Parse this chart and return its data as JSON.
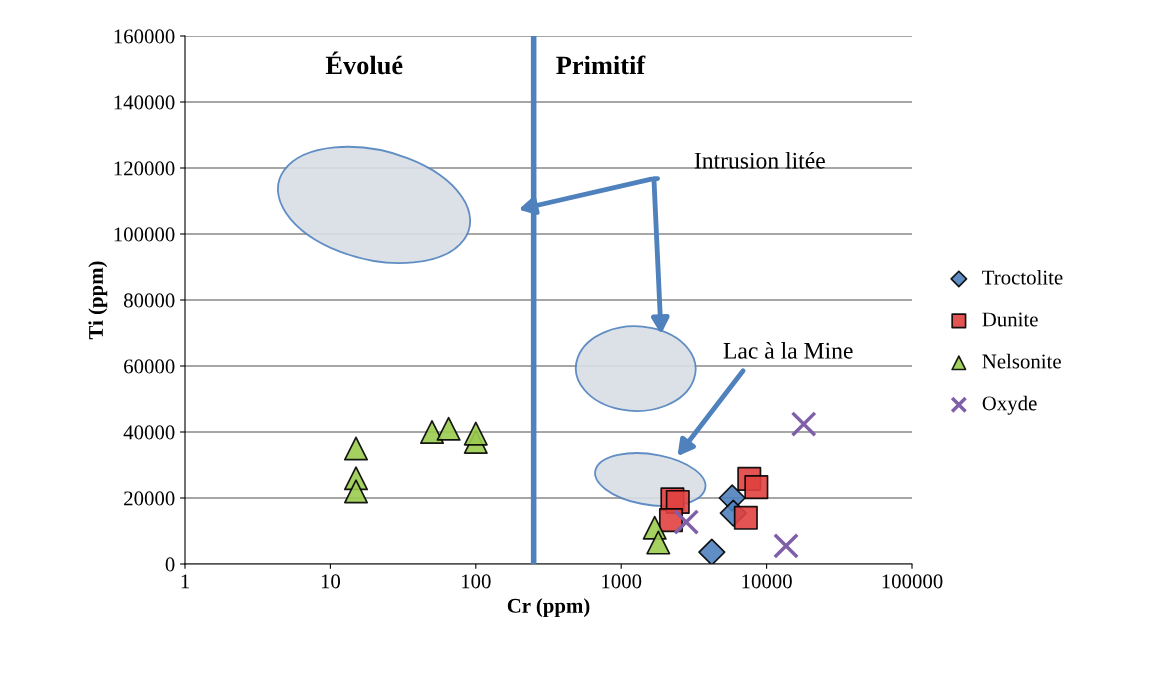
{
  "chart_data": {
    "type": "scatter",
    "xlabel": "Cr (ppm)",
    "ylabel": "Ti (ppm)",
    "log": "x",
    "xlim": [
      1,
      100000
    ],
    "xticks": [
      1,
      10,
      100,
      1000,
      10000,
      100000
    ],
    "ylim": [
      0,
      160000
    ],
    "yticks": [
      0,
      20000,
      40000,
      60000,
      80000,
      100000,
      120000,
      140000,
      160000
    ],
    "grid": "y",
    "legend": "right",
    "series": [
      {
        "name": "Troctolite",
        "color": "#4f81bd",
        "marker": "diamond",
        "x": [
          5800,
          5900,
          4200
        ],
        "values": [
          20000,
          15400,
          3600
        ]
      },
      {
        "name": "Dunite",
        "color": "#e0413f",
        "marker": "square",
        "x": [
          2250,
          2450,
          2200,
          7600,
          8500,
          7200
        ],
        "values": [
          19600,
          18800,
          13300,
          25800,
          23300,
          14000
        ]
      },
      {
        "name": "Nelsonite",
        "color": "#9bcc50",
        "marker": "triangle",
        "x": [
          15,
          15,
          15,
          50,
          65,
          100,
          100,
          1700,
          1800
        ],
        "values": [
          35000,
          26000,
          22000,
          40000,
          41000,
          37000,
          39500,
          11000,
          6500
        ]
      },
      {
        "name": "Oxyde",
        "color": "#7f5fa8",
        "marker": "cross",
        "x": [
          18000,
          2800,
          13600
        ],
        "values": [
          42400,
          12700,
          5500
        ]
      }
    ],
    "ref_lines": [
      {
        "axis": "x",
        "value": 250,
        "color": "#4f81bd"
      }
    ],
    "annotations": [
      "Évolué",
      "Primitif",
      "Intrusion litée",
      "Lac à la Mine"
    ]
  }
}
